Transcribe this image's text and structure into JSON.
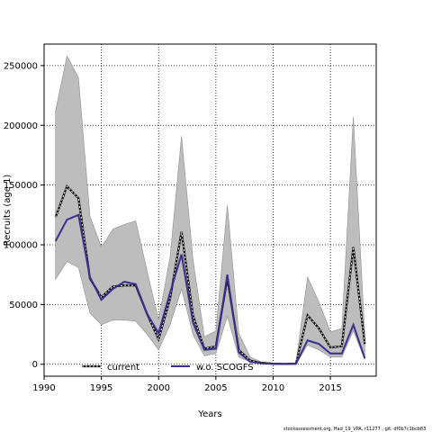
{
  "chart_data": {
    "type": "line",
    "xlabel": "Years",
    "ylabel": "Recruits (age 1)",
    "xlim": [
      1990,
      2019
    ],
    "ylim": [
      -10000,
      268000
    ],
    "xticks": [
      1990,
      1995,
      2000,
      2005,
      2010,
      2015
    ],
    "yticks": [
      0,
      50000,
      100000,
      150000,
      200000,
      250000
    ],
    "grid": true,
    "legend_position": "bottom-center",
    "x": [
      1991,
      1992,
      1993,
      1994,
      1995,
      1996,
      1997,
      1998,
      1999,
      2000,
      2001,
      2002,
      2003,
      2004,
      2005,
      2006,
      2007,
      2008,
      2009,
      2010,
      2011,
      2012,
      2013,
      2014,
      2015,
      2016,
      2017,
      2018
    ],
    "band": {
      "upper": [
        212000,
        258000,
        240000,
        124000,
        98000,
        113000,
        117000,
        120000,
        78000,
        37000,
        90000,
        191000,
        88000,
        23000,
        28000,
        133000,
        26000,
        6000,
        2000,
        1000,
        600,
        1000,
        73000,
        52000,
        27000,
        30000,
        207000,
        25000
      ],
      "lower": [
        71000,
        86000,
        81000,
        43000,
        33000,
        37000,
        37000,
        36000,
        25000,
        12000,
        33000,
        63000,
        25000,
        7000,
        9000,
        40000,
        6000,
        2000,
        500,
        200,
        100,
        200,
        16000,
        12000,
        6000,
        6000,
        28000,
        4000
      ]
    },
    "series": [
      {
        "name": "current",
        "color": "#000000",
        "values": [
          123000,
          149000,
          139000,
          72000,
          56000,
          65000,
          66000,
          66000,
          42000,
          21000,
          55000,
          111000,
          41000,
          13000,
          15000,
          72000,
          12000,
          3000,
          1000,
          500,
          300,
          500,
          41000,
          30000,
          14000,
          15000,
          98000,
          17000
        ]
      },
      {
        "name": "w.o. SCOGFS",
        "color": "#3a2f8f",
        "values": [
          103000,
          121000,
          125000,
          73000,
          54000,
          63000,
          69000,
          67000,
          42000,
          26000,
          60000,
          92000,
          35000,
          12000,
          13000,
          75000,
          10000,
          2000,
          800,
          400,
          200,
          400,
          20000,
          17000,
          9000,
          9000,
          33000,
          5000
        ]
      }
    ]
  },
  "footer": "stockassessment.org, Had_19_VPA, r11277 , git: df0b7c1bcb83"
}
